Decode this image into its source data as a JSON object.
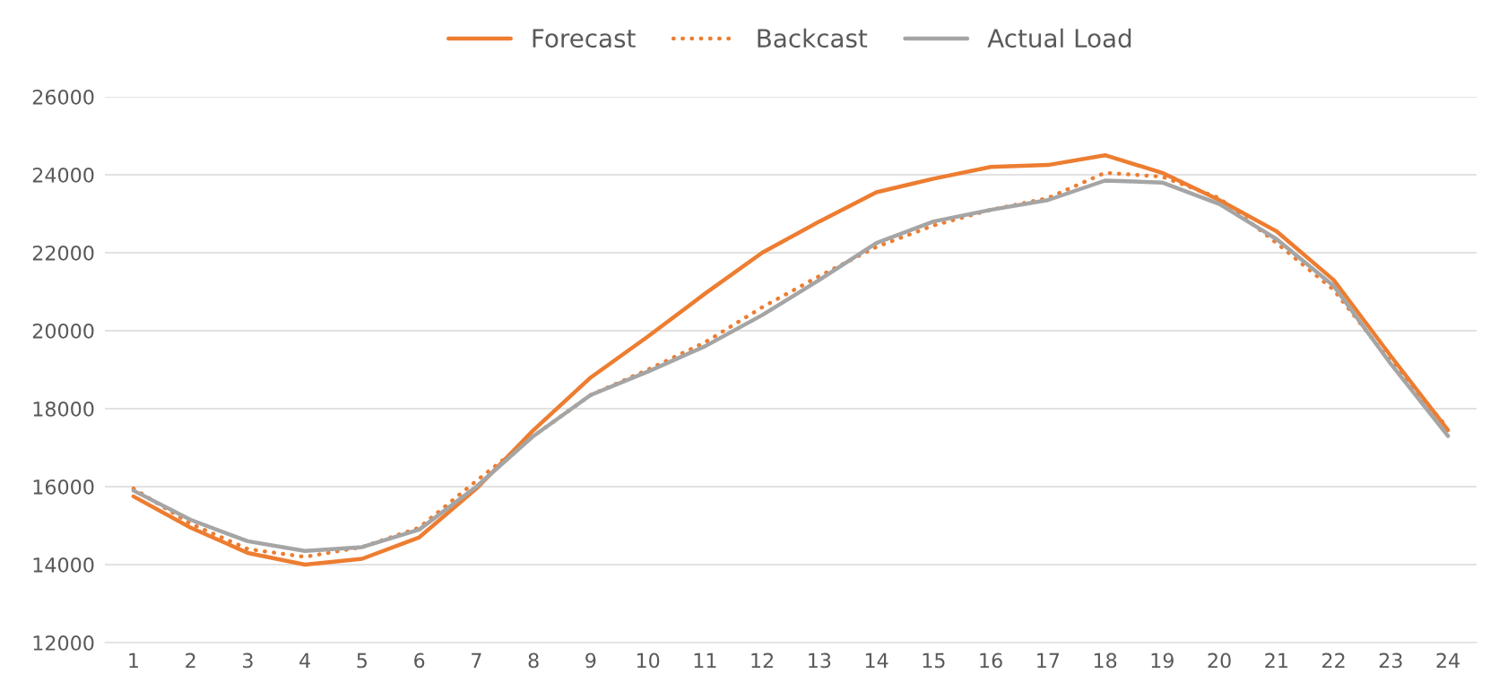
{
  "chart_data": {
    "type": "line",
    "categories": [
      "1",
      "2",
      "3",
      "4",
      "5",
      "6",
      "7",
      "8",
      "9",
      "10",
      "11",
      "12",
      "13",
      "14",
      "15",
      "16",
      "17",
      "18",
      "19",
      "20",
      "21",
      "22",
      "23",
      "24"
    ],
    "series": [
      {
        "name": "Forecast",
        "color": "#ed7d31",
        "line_style": "solid",
        "values": [
          15750,
          14950,
          14300,
          14000,
          14150,
          14700,
          15950,
          17450,
          18800,
          19850,
          20950,
          22000,
          22800,
          23550,
          23900,
          24200,
          24250,
          24500,
          24050,
          23350,
          22550,
          21300,
          19350,
          17450
        ]
      },
      {
        "name": "Backcast",
        "color": "#ed7d31",
        "line_style": "dotted",
        "values": [
          15950,
          15050,
          14400,
          14200,
          14450,
          14950,
          16150,
          17300,
          18350,
          19000,
          19700,
          20600,
          21400,
          22150,
          22700,
          23100,
          23400,
          24050,
          23950,
          23400,
          22250,
          21050,
          19200,
          17500
        ]
      },
      {
        "name": "Actual Load",
        "color": "#a5a5a5",
        "line_style": "solid",
        "values": [
          15900,
          15150,
          14600,
          14350,
          14450,
          14900,
          16000,
          17300,
          18350,
          18950,
          19600,
          20400,
          21300,
          22250,
          22800,
          23100,
          23350,
          23850,
          23800,
          23250,
          22350,
          21150,
          19150,
          17300
        ]
      }
    ],
    "ylim": [
      12000,
      26000
    ],
    "yticks": [
      12000,
      14000,
      16000,
      18000,
      20000,
      22000,
      24000,
      26000
    ],
    "grid": "y",
    "legend": "top",
    "marker": "none"
  }
}
